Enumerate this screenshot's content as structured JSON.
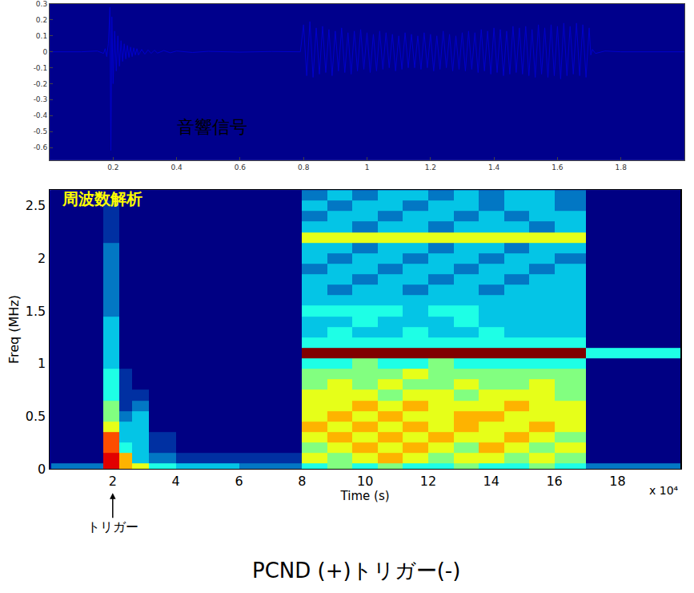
{
  "chart_data": [
    {
      "type": "line",
      "title": "音響信号",
      "color": "#0000cc",
      "grid": false,
      "xlim": [
        0,
        2
      ],
      "ylim": [
        -0.68,
        0.3
      ],
      "xticks": [
        0.2,
        0.4,
        0.6,
        0.8,
        1,
        1.2,
        1.4,
        1.6,
        1.8
      ],
      "yticks": [
        -0.6,
        -0.5,
        -0.4,
        -0.3,
        -0.2,
        -0.1,
        0,
        0.1,
        0.2,
        0.3
      ],
      "x": [
        0,
        0.1,
        0.15,
        0.17,
        0.175,
        0.18,
        0.185,
        0.19,
        0.193,
        0.196,
        0.2,
        0.205,
        0.21,
        0.215,
        0.22,
        0.225,
        0.23,
        0.235,
        0.24,
        0.245,
        0.25,
        0.255,
        0.26,
        0.265,
        0.27,
        0.275,
        0.28,
        0.29,
        0.3,
        0.31,
        0.32,
        0.33,
        0.34,
        0.36,
        0.38,
        0.4,
        0.45,
        0.5,
        0.6,
        0.7,
        0.79,
        0.8,
        0.81,
        0.82,
        0.83,
        0.84,
        0.85,
        0.86,
        0.87,
        0.88,
        0.89,
        0.9,
        0.91,
        0.92,
        0.93,
        0.94,
        0.95,
        0.96,
        0.97,
        0.98,
        0.99,
        1,
        1.01,
        1.02,
        1.03,
        1.04,
        1.05,
        1.06,
        1.07,
        1.08,
        1.09,
        1.1,
        1.11,
        1.12,
        1.13,
        1.14,
        1.15,
        1.16,
        1.17,
        1.18,
        1.19,
        1.2,
        1.21,
        1.22,
        1.23,
        1.24,
        1.25,
        1.26,
        1.27,
        1.28,
        1.29,
        1.3,
        1.31,
        1.32,
        1.33,
        1.34,
        1.35,
        1.36,
        1.37,
        1.38,
        1.39,
        1.4,
        1.41,
        1.42,
        1.43,
        1.44,
        1.45,
        1.46,
        1.47,
        1.48,
        1.49,
        1.5,
        1.51,
        1.52,
        1.53,
        1.54,
        1.55,
        1.56,
        1.57,
        1.58,
        1.59,
        1.6,
        1.61,
        1.62,
        1.63,
        1.64,
        1.65,
        1.66,
        1.67,
        1.68,
        1.69,
        1.7,
        1.705,
        1.71,
        1.72,
        1.75,
        1.8,
        2
      ],
      "values": [
        0,
        0,
        0.005,
        -0.01,
        0.02,
        -0.03,
        0.05,
        0.28,
        -0.62,
        0.22,
        -0.2,
        0.13,
        -0.12,
        0.1,
        -0.09,
        0.07,
        -0.06,
        0.05,
        -0.045,
        0.04,
        -0.035,
        0.03,
        -0.03,
        0.025,
        -0.02,
        0.02,
        -0.02,
        0.015,
        -0.015,
        0.012,
        -0.01,
        0.01,
        -0.008,
        0.008,
        -0.006,
        0.005,
        -0.004,
        0.003,
        -0.002,
        0.002,
        0,
        0.17,
        -0.15,
        0.19,
        -0.16,
        0.15,
        -0.14,
        0.16,
        -0.13,
        0.14,
        -0.15,
        0.13,
        -0.12,
        0.15,
        -0.13,
        0.12,
        -0.14,
        0.13,
        -0.12,
        0.14,
        -0.11,
        0.12,
        -0.13,
        0.11,
        -0.12,
        0.13,
        -0.11,
        0.12,
        -0.1,
        0.11,
        -0.12,
        0.1,
        -0.11,
        0.12,
        -0.1,
        0.11,
        -0.1,
        0.1,
        -0.11,
        0.12,
        -0.1,
        0.11,
        -0.12,
        0.1,
        -0.11,
        0.13,
        -0.1,
        0.11,
        -0.12,
        0.1,
        -0.11,
        0.12,
        -0.12,
        0.13,
        -0.11,
        0.12,
        -0.13,
        0.14,
        -0.12,
        0.13,
        -0.14,
        0.15,
        -0.13,
        0.14,
        -0.15,
        0.13,
        -0.14,
        0.16,
        -0.13,
        0.15,
        -0.14,
        0.16,
        -0.15,
        0.14,
        -0.16,
        0.17,
        -0.14,
        0.15,
        -0.16,
        0.17,
        -0.15,
        0.16,
        -0.17,
        0.18,
        -0.15,
        0.16,
        -0.14,
        0.18,
        -0.15,
        0.17,
        -0.16,
        0.15,
        -0.02,
        0.015,
        -0.01,
        0.005,
        0,
        0
      ]
    },
    {
      "type": "heatmap",
      "title": "周波数解析",
      "xlabel": "Time (s)",
      "ylabel": "Freq (MHz)",
      "xlim": [
        0,
        20
      ],
      "ylim": [
        0,
        2.65
      ],
      "xticks": [
        2,
        4,
        6,
        8,
        10,
        12,
        14,
        16,
        18
      ],
      "yticks": [
        0,
        0.5,
        1,
        1.5,
        2,
        2.5
      ],
      "zlim": [
        0,
        10
      ],
      "annotations": [
        {
          "text": "トリガー",
          "x": 2
        },
        {
          "text": "x 10⁴"
        }
      ],
      "x": [
        0.5,
        1.4,
        2,
        2.4,
        2.8,
        3.5,
        4.5,
        5.5,
        6.5,
        7.2,
        7.6,
        8.4,
        9.2,
        10,
        10.8,
        11.6,
        12.4,
        13.2,
        14,
        14.8,
        15.6,
        16.4,
        17.6,
        18.8,
        19.8
      ],
      "y": [
        0,
        0.1,
        0.2,
        0.3,
        0.4,
        0.5,
        0.6,
        0.7,
        0.8,
        0.9,
        1,
        1.1,
        1.2,
        1.3,
        1.4,
        1.5,
        1.6,
        1.7,
        1.8,
        1.9,
        2,
        2.1,
        2.2,
        2.3,
        2.4,
        2.5,
        2.6
      ],
      "z": [
        [
          2,
          2,
          9,
          7,
          6,
          4,
          3,
          3,
          2,
          2,
          2,
          4,
          5,
          4,
          5,
          4,
          4,
          5,
          4,
          4,
          5,
          4,
          2,
          2,
          2
        ],
        [
          0,
          0,
          9,
          7,
          3,
          2,
          1,
          1,
          1,
          1,
          1,
          6,
          5,
          6,
          7,
          6,
          5,
          6,
          6,
          5,
          6,
          5,
          0,
          0,
          0
        ],
        [
          0,
          0,
          8,
          4,
          3,
          1,
          0,
          0,
          0,
          0,
          0,
          5,
          6,
          7,
          6,
          7,
          6,
          5,
          7,
          6,
          5,
          6,
          0,
          0,
          0
        ],
        [
          0,
          0,
          8,
          3,
          3,
          1,
          0,
          0,
          0,
          0,
          0,
          6,
          7,
          6,
          7,
          6,
          7,
          6,
          6,
          7,
          6,
          5,
          0,
          0,
          0
        ],
        [
          0,
          0,
          6,
          3,
          3,
          0,
          0,
          0,
          0,
          0,
          0,
          7,
          6,
          7,
          6,
          7,
          6,
          7,
          6,
          6,
          7,
          6,
          0,
          0,
          0
        ],
        [
          0,
          0,
          5,
          2,
          3,
          0,
          0,
          0,
          0,
          0,
          0,
          6,
          7,
          6,
          7,
          6,
          6,
          7,
          7,
          6,
          6,
          6,
          0,
          0,
          0
        ],
        [
          0,
          0,
          5,
          1,
          2,
          0,
          0,
          0,
          0,
          0,
          0,
          6,
          6,
          7,
          6,
          7,
          6,
          6,
          6,
          7,
          6,
          6,
          0,
          0,
          0
        ],
        [
          0,
          0,
          4,
          1,
          1,
          0,
          0,
          0,
          0,
          0,
          0,
          6,
          6,
          6,
          5,
          6,
          6,
          5,
          6,
          6,
          6,
          5,
          0,
          0,
          0
        ],
        [
          0,
          0,
          4,
          1,
          0,
          0,
          0,
          0,
          0,
          0,
          0,
          5,
          6,
          5,
          6,
          5,
          5,
          6,
          5,
          5,
          6,
          5,
          0,
          0,
          0
        ],
        [
          0,
          0,
          4,
          1,
          0,
          0,
          0,
          0,
          0,
          0,
          0,
          5,
          5,
          5,
          5,
          6,
          5,
          5,
          5,
          5,
          5,
          5,
          0,
          0,
          0
        ],
        [
          0,
          0,
          3,
          0,
          0,
          0,
          0,
          0,
          0,
          0,
          0,
          4,
          4,
          5,
          4,
          4,
          5,
          4,
          4,
          4,
          4,
          4,
          0,
          0,
          0
        ],
        [
          0,
          0,
          3,
          0,
          0,
          0,
          0,
          0,
          0,
          0,
          0,
          10,
          10,
          10,
          10,
          10,
          10,
          10,
          10,
          10,
          10,
          10,
          4,
          4,
          4
        ],
        [
          0,
          0,
          3,
          0,
          0,
          0,
          0,
          0,
          0,
          0,
          0,
          4,
          4,
          4,
          4,
          4,
          4,
          4,
          4,
          4,
          4,
          4,
          0,
          0,
          0
        ],
        [
          0,
          0,
          3,
          0,
          0,
          0,
          0,
          0,
          0,
          0,
          0,
          3,
          4,
          3,
          3,
          4,
          3,
          3,
          4,
          3,
          3,
          3,
          0,
          0,
          0
        ],
        [
          0,
          0,
          3,
          0,
          0,
          0,
          0,
          0,
          0,
          0,
          0,
          3,
          3,
          4,
          3,
          3,
          3,
          4,
          3,
          3,
          3,
          3,
          0,
          0,
          0
        ],
        [
          0,
          0,
          2,
          0,
          0,
          0,
          0,
          0,
          0,
          0,
          0,
          4,
          4,
          4,
          4,
          3,
          4,
          4,
          3,
          3,
          3,
          3,
          0,
          0,
          0
        ],
        [
          0,
          0,
          2,
          0,
          0,
          0,
          0,
          0,
          0,
          0,
          0,
          3,
          3,
          3,
          3,
          3,
          3,
          3,
          3,
          3,
          3,
          3,
          0,
          0,
          0
        ],
        [
          0,
          0,
          2,
          0,
          0,
          0,
          0,
          0,
          0,
          0,
          0,
          3,
          2,
          3,
          3,
          2,
          3,
          3,
          2,
          3,
          3,
          3,
          0,
          0,
          0
        ],
        [
          0,
          0,
          2,
          0,
          0,
          0,
          0,
          0,
          0,
          0,
          0,
          3,
          3,
          2,
          3,
          3,
          2,
          3,
          3,
          2,
          3,
          3,
          0,
          0,
          0
        ],
        [
          0,
          0,
          2,
          0,
          0,
          0,
          0,
          0,
          0,
          0,
          0,
          2,
          3,
          3,
          2,
          3,
          3,
          2,
          3,
          3,
          2,
          3,
          0,
          0,
          0
        ],
        [
          0,
          0,
          2,
          0,
          0,
          0,
          0,
          0,
          0,
          0,
          0,
          3,
          2,
          3,
          3,
          2,
          3,
          3,
          2,
          3,
          3,
          2,
          0,
          0,
          0
        ],
        [
          0,
          0,
          2,
          0,
          0,
          0,
          0,
          0,
          0,
          0,
          0,
          3,
          3,
          2,
          3,
          3,
          2,
          3,
          3,
          2,
          3,
          3,
          0,
          0,
          0
        ],
        [
          0,
          0,
          1,
          0,
          0,
          0,
          0,
          0,
          0,
          0,
          0,
          6,
          6,
          6,
          6,
          6,
          6,
          6,
          6,
          6,
          6,
          6,
          0,
          0,
          0
        ],
        [
          0,
          0,
          1,
          0,
          0,
          0,
          0,
          0,
          0,
          0,
          0,
          3,
          3,
          2,
          3,
          3,
          2,
          3,
          3,
          3,
          2,
          3,
          0,
          0,
          0
        ],
        [
          0,
          0,
          1,
          0,
          0,
          0,
          0,
          0,
          0,
          0,
          0,
          2,
          3,
          3,
          2,
          3,
          3,
          2,
          3,
          2,
          3,
          3,
          0,
          0,
          0
        ],
        [
          0,
          0,
          1,
          0,
          0,
          0,
          0,
          0,
          0,
          0,
          0,
          3,
          2,
          3,
          3,
          2,
          3,
          3,
          2,
          3,
          3,
          2,
          0,
          0,
          0
        ],
        [
          0,
          0,
          0,
          0,
          0,
          0,
          0,
          0,
          0,
          0,
          0,
          2,
          3,
          2,
          3,
          3,
          2,
          3,
          2,
          3,
          3,
          2,
          0,
          0,
          0
        ]
      ]
    }
  ],
  "caption": "PCND (+)トリガー(-)"
}
